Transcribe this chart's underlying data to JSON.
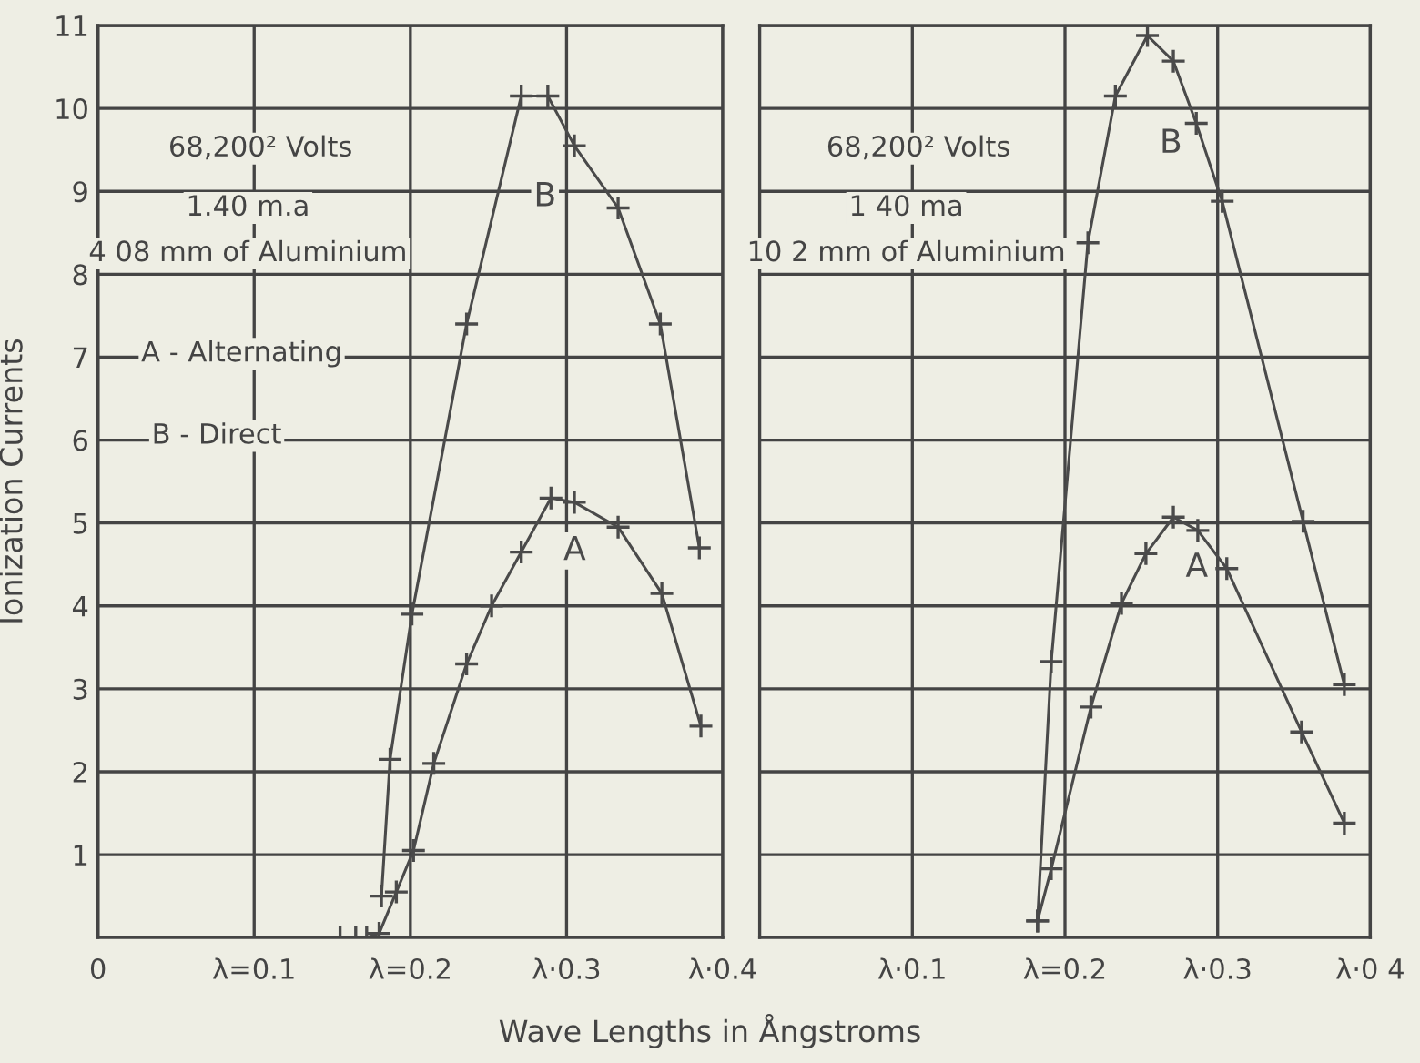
{
  "chart_data": [
    {
      "type": "line",
      "ylabel": "Ionization Currents",
      "xlabel": "Wave Lengths in Ångstroms",
      "xlim": [
        0,
        0.4
      ],
      "ylim": [
        0,
        11
      ],
      "xticks": [
        0,
        {
          "value": 0.1,
          "label": "λ=0.1"
        },
        {
          "value": 0.2,
          "label": "λ=0.2"
        },
        {
          "value": 0.3,
          "label": "λ·0.3"
        },
        {
          "value": 0.4,
          "label": "λ·0.4"
        }
      ],
      "yticks": [
        1,
        2,
        3,
        4,
        5,
        6,
        7,
        8,
        9,
        10,
        11
      ],
      "grid": true,
      "marker": "cross",
      "line_style": "solid",
      "annotations": [
        "68,200² Volts",
        "1.40 m.a",
        "4 08 mm of Aluminium",
        "A - Alternating",
        "B - Direct"
      ],
      "series": [
        {
          "name": "B",
          "color": "#4a4a4a",
          "x": [
            0.1815,
            0.187,
            0.201,
            0.236,
            0.271,
            0.288,
            0.305,
            0.333,
            0.36,
            0.385
          ],
          "values": [
            0.5,
            2.15,
            3.9,
            7.4,
            10.15,
            10.15,
            9.55,
            8.8,
            7.4,
            4.7
          ]
        },
        {
          "name": "A",
          "color": "#4a4a4a",
          "x": [
            0.155,
            0.165,
            0.172,
            0.18,
            0.191,
            0.202,
            0.215,
            0.236,
            0.252,
            0.271,
            0.29,
            0.305,
            0.333,
            0.361,
            0.386
          ],
          "values": [
            0,
            0,
            0,
            0.05,
            0.55,
            1.05,
            2.1,
            3.3,
            4.0,
            4.65,
            5.3,
            5.25,
            4.95,
            4.15,
            2.55
          ]
        }
      ]
    },
    {
      "type": "line",
      "tick_labels": "x",
      "xlim": [
        0,
        0.4
      ],
      "ylim": [
        0,
        11
      ],
      "xticks": [
        {
          "value": 0.1,
          "label": "λ·0.1"
        },
        {
          "value": 0.2,
          "label": "λ=0.2"
        },
        {
          "value": 0.3,
          "label": "λ·0.3"
        },
        {
          "value": 0.4,
          "label": "λ·0 4"
        }
      ],
      "yticks": [
        1,
        2,
        3,
        4,
        5,
        6,
        7,
        8,
        9,
        10,
        11
      ],
      "grid": true,
      "marker": "cross",
      "line_style": "solid",
      "annotations": [
        "68,200² Volts",
        "1 40 ma",
        "10 2 mm of Aluminium"
      ],
      "series": [
        {
          "name": "B",
          "color": "#4a4a4a",
          "x": [
            0.182,
            0.191,
            0.215,
            0.233,
            0.254,
            0.271,
            0.286,
            0.303,
            0.356,
            0.383
          ],
          "values": [
            0.2,
            3.33,
            8.38,
            10.15,
            10.88,
            10.57,
            9.82,
            8.88,
            5.02,
            3.05
          ]
        },
        {
          "name": "A",
          "color": "#4a4a4a",
          "x": [
            0.182,
            0.191,
            0.217,
            0.237,
            0.253,
            0.271,
            0.287,
            0.306,
            0.355,
            0.383
          ],
          "values": [
            0.2,
            0.83,
            2.78,
            4.03,
            4.63,
            5.07,
            4.91,
            4.45,
            2.48,
            1.38
          ]
        }
      ]
    }
  ]
}
